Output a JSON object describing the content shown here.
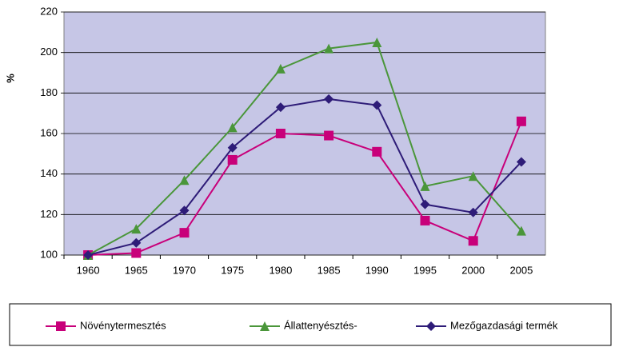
{
  "chart_data": {
    "type": "line",
    "ylabel": "%",
    "categories": [
      "1960",
      "1965",
      "1970",
      "1975",
      "1980",
      "1985",
      "1990",
      "1995",
      "2000",
      "2005"
    ],
    "series": [
      {
        "name": "Növénytermesztés",
        "color": "#c8007a",
        "marker": "square",
        "values": [
          100,
          101,
          111,
          147,
          160,
          159,
          151,
          117,
          107,
          166
        ]
      },
      {
        "name": "Állattenyésztés-",
        "color": "#4a963a",
        "marker": "triangle",
        "values": [
          100,
          113,
          137,
          163,
          192,
          202,
          205,
          134,
          139,
          112
        ]
      },
      {
        "name": "Mezőgazdasági termék",
        "color": "#2e1c78",
        "marker": "diamond",
        "values": [
          100,
          106,
          122,
          153,
          173,
          177,
          174,
          125,
          121,
          146
        ]
      }
    ],
    "ylim": [
      100,
      220
    ],
    "yticks": [
      100,
      120,
      140,
      160,
      180,
      200,
      220
    ],
    "grid": true,
    "legend": "bottom"
  }
}
